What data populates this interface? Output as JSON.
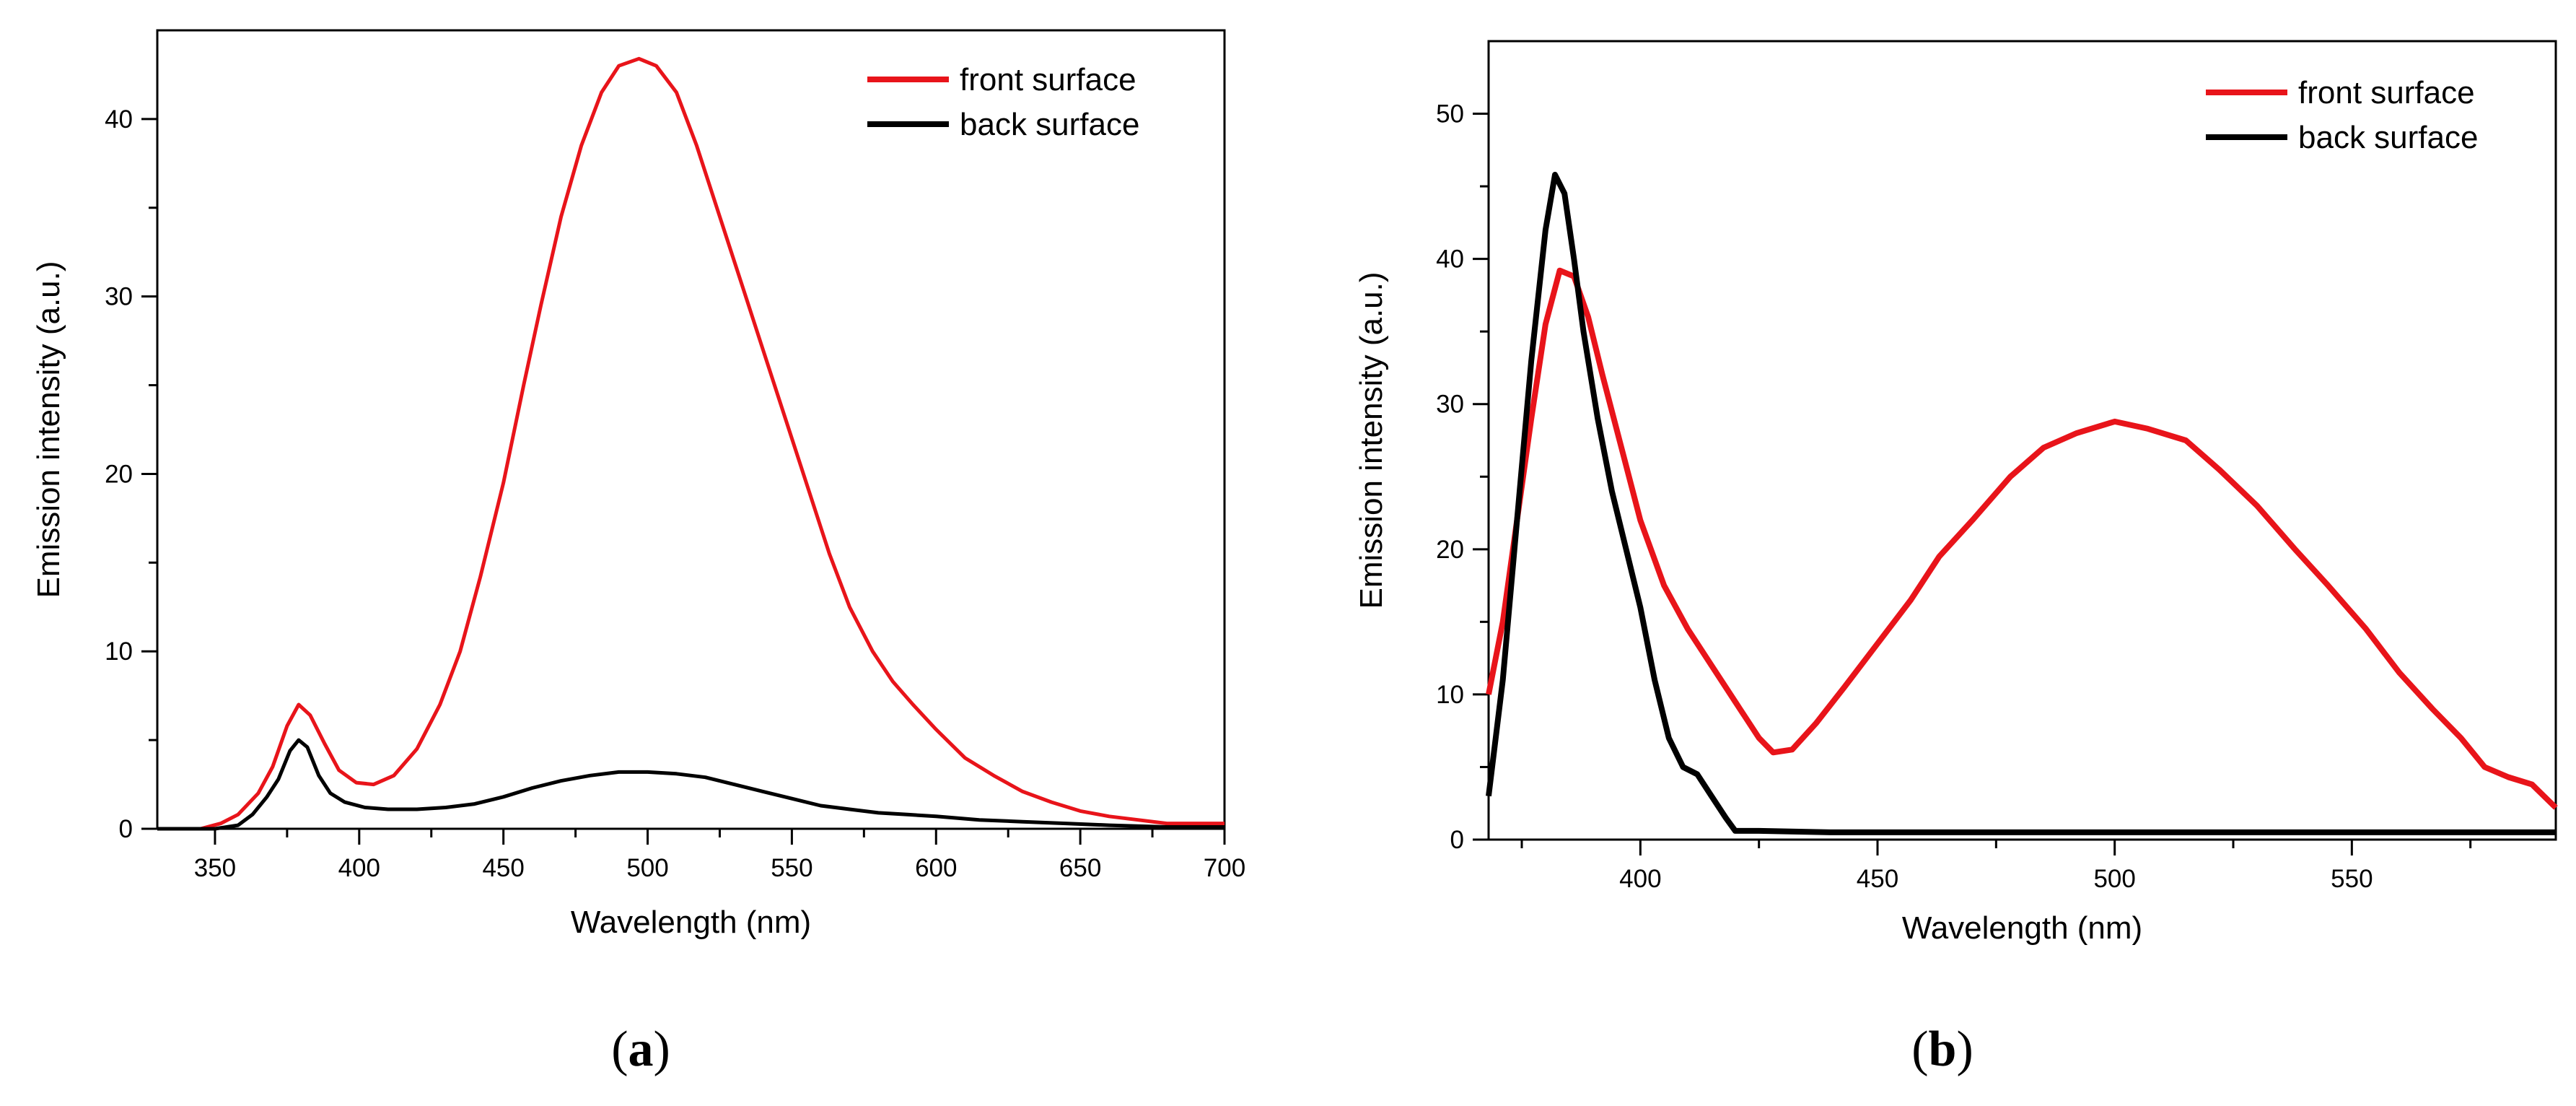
{
  "chart_data": [
    {
      "type": "line",
      "panel_label": "a",
      "xlabel": "Wavelength (nm)",
      "ylabel": "Emission intensity (a.u.)",
      "xlim": [
        330,
        700
      ],
      "ylim": [
        0,
        45
      ],
      "xticks": [
        350,
        400,
        450,
        500,
        550,
        600,
        650,
        700
      ],
      "yticks": [
        0,
        10,
        20,
        30,
        40
      ],
      "legend_position": "top-right",
      "series": [
        {
          "name": "front surface",
          "color": "#e8141a",
          "points": [
            [
              330,
              0
            ],
            [
              345,
              0
            ],
            [
              352,
              0.3
            ],
            [
              358,
              0.8
            ],
            [
              365,
              2.0
            ],
            [
              370,
              3.5
            ],
            [
              375,
              5.8
            ],
            [
              379,
              7.0
            ],
            [
              383,
              6.4
            ],
            [
              388,
              4.8
            ],
            [
              393,
              3.3
            ],
            [
              399,
              2.6
            ],
            [
              405,
              2.5
            ],
            [
              412,
              3.0
            ],
            [
              420,
              4.5
            ],
            [
              428,
              7.0
            ],
            [
              435,
              10.0
            ],
            [
              442,
              14.2
            ],
            [
              450,
              19.5
            ],
            [
              457,
              25.0
            ],
            [
              463,
              29.5
            ],
            [
              470,
              34.5
            ],
            [
              477,
              38.5
            ],
            [
              484,
              41.5
            ],
            [
              490,
              43.0
            ],
            [
              497,
              43.4
            ],
            [
              503,
              43.0
            ],
            [
              510,
              41.5
            ],
            [
              517,
              38.5
            ],
            [
              525,
              34.5
            ],
            [
              533,
              30.5
            ],
            [
              540,
              27.0
            ],
            [
              548,
              23.0
            ],
            [
              556,
              19.0
            ],
            [
              563,
              15.5
            ],
            [
              570,
              12.5
            ],
            [
              578,
              10.0
            ],
            [
              585,
              8.3
            ],
            [
              592,
              7.0
            ],
            [
              600,
              5.6
            ],
            [
              610,
              4.0
            ],
            [
              620,
              3.0
            ],
            [
              630,
              2.1
            ],
            [
              640,
              1.5
            ],
            [
              650,
              1.0
            ],
            [
              660,
              0.7
            ],
            [
              670,
              0.5
            ],
            [
              680,
              0.3
            ],
            [
              690,
              0.3
            ],
            [
              700,
              0.3
            ]
          ]
        },
        {
          "name": "back surface",
          "color": "#000000",
          "points": [
            [
              330,
              0
            ],
            [
              350,
              0
            ],
            [
              358,
              0.2
            ],
            [
              363,
              0.8
            ],
            [
              368,
              1.8
            ],
            [
              372,
              2.8
            ],
            [
              376,
              4.4
            ],
            [
              379,
              5.0
            ],
            [
              382,
              4.6
            ],
            [
              386,
              3.0
            ],
            [
              390,
              2.0
            ],
            [
              395,
              1.5
            ],
            [
              402,
              1.2
            ],
            [
              410,
              1.1
            ],
            [
              420,
              1.1
            ],
            [
              430,
              1.2
            ],
            [
              440,
              1.4
            ],
            [
              450,
              1.8
            ],
            [
              460,
              2.3
            ],
            [
              470,
              2.7
            ],
            [
              480,
              3.0
            ],
            [
              490,
              3.2
            ],
            [
              500,
              3.2
            ],
            [
              510,
              3.1
            ],
            [
              520,
              2.9
            ],
            [
              530,
              2.5
            ],
            [
              540,
              2.1
            ],
            [
              550,
              1.7
            ],
            [
              560,
              1.3
            ],
            [
              570,
              1.1
            ],
            [
              580,
              0.9
            ],
            [
              590,
              0.8
            ],
            [
              600,
              0.7
            ],
            [
              615,
              0.5
            ],
            [
              630,
              0.4
            ],
            [
              645,
              0.3
            ],
            [
              660,
              0.2
            ],
            [
              680,
              0.1
            ],
            [
              700,
              0.1
            ]
          ]
        }
      ]
    },
    {
      "type": "line",
      "panel_label": "b",
      "xlabel": "Wavelength (nm)",
      "ylabel": "Emission intensity (a.u.)",
      "xlim": [
        368,
        593
      ],
      "ylim": [
        0,
        55
      ],
      "xticks": [
        400,
        450,
        500,
        550
      ],
      "yticks": [
        0,
        10,
        20,
        30,
        40,
        50
      ],
      "legend_position": "top-right",
      "series": [
        {
          "name": "front surface",
          "color": "#e8141a",
          "points": [
            [
              368,
              10
            ],
            [
              371,
              15
            ],
            [
              374,
              22
            ],
            [
              377,
              29
            ],
            [
              380,
              35.5
            ],
            [
              383,
              39.2
            ],
            [
              386,
              38.8
            ],
            [
              389,
              36
            ],
            [
              392,
              32
            ],
            [
              396,
              27
            ],
            [
              400,
              22
            ],
            [
              405,
              17.5
            ],
            [
              410,
              14.5
            ],
            [
              415,
              12
            ],
            [
              420,
              9.5
            ],
            [
              425,
              7
            ],
            [
              428,
              6
            ],
            [
              432,
              6.2
            ],
            [
              437,
              8
            ],
            [
              443,
              10.5
            ],
            [
              450,
              13.5
            ],
            [
              457,
              16.5
            ],
            [
              463,
              19.5
            ],
            [
              470,
              22
            ],
            [
              478,
              25
            ],
            [
              485,
              27
            ],
            [
              492,
              28
            ],
            [
              500,
              28.8
            ],
            [
              507,
              28.3
            ],
            [
              515,
              27.5
            ],
            [
              522,
              25.5
            ],
            [
              530,
              23
            ],
            [
              538,
              20
            ],
            [
              545,
              17.5
            ],
            [
              553,
              14.5
            ],
            [
              560,
              11.5
            ],
            [
              567,
              9
            ],
            [
              573,
              7
            ],
            [
              578,
              5
            ],
            [
              583,
              4.3
            ],
            [
              588,
              3.8
            ],
            [
              593,
              2.2
            ]
          ]
        },
        {
          "name": "back surface",
          "color": "#000000",
          "points": [
            [
              368,
              3
            ],
            [
              371,
              11
            ],
            [
              374,
              22
            ],
            [
              377,
              33
            ],
            [
              380,
              42
            ],
            [
              382,
              45.8
            ],
            [
              384,
              44.5
            ],
            [
              386,
              40
            ],
            [
              388,
              35
            ],
            [
              391,
              29
            ],
            [
              394,
              24
            ],
            [
              397,
              20
            ],
            [
              400,
              16
            ],
            [
              403,
              11
            ],
            [
              406,
              7
            ],
            [
              409,
              5
            ],
            [
              412,
              4.5
            ],
            [
              415,
              3
            ],
            [
              418,
              1.5
            ],
            [
              420,
              0.6
            ],
            [
              425,
              0.6
            ],
            [
              440,
              0.5
            ],
            [
              460,
              0.5
            ],
            [
              480,
              0.5
            ],
            [
              500,
              0.5
            ],
            [
              520,
              0.5
            ],
            [
              540,
              0.5
            ],
            [
              560,
              0.5
            ],
            [
              580,
              0.5
            ],
            [
              593,
              0.5
            ]
          ]
        }
      ]
    }
  ]
}
